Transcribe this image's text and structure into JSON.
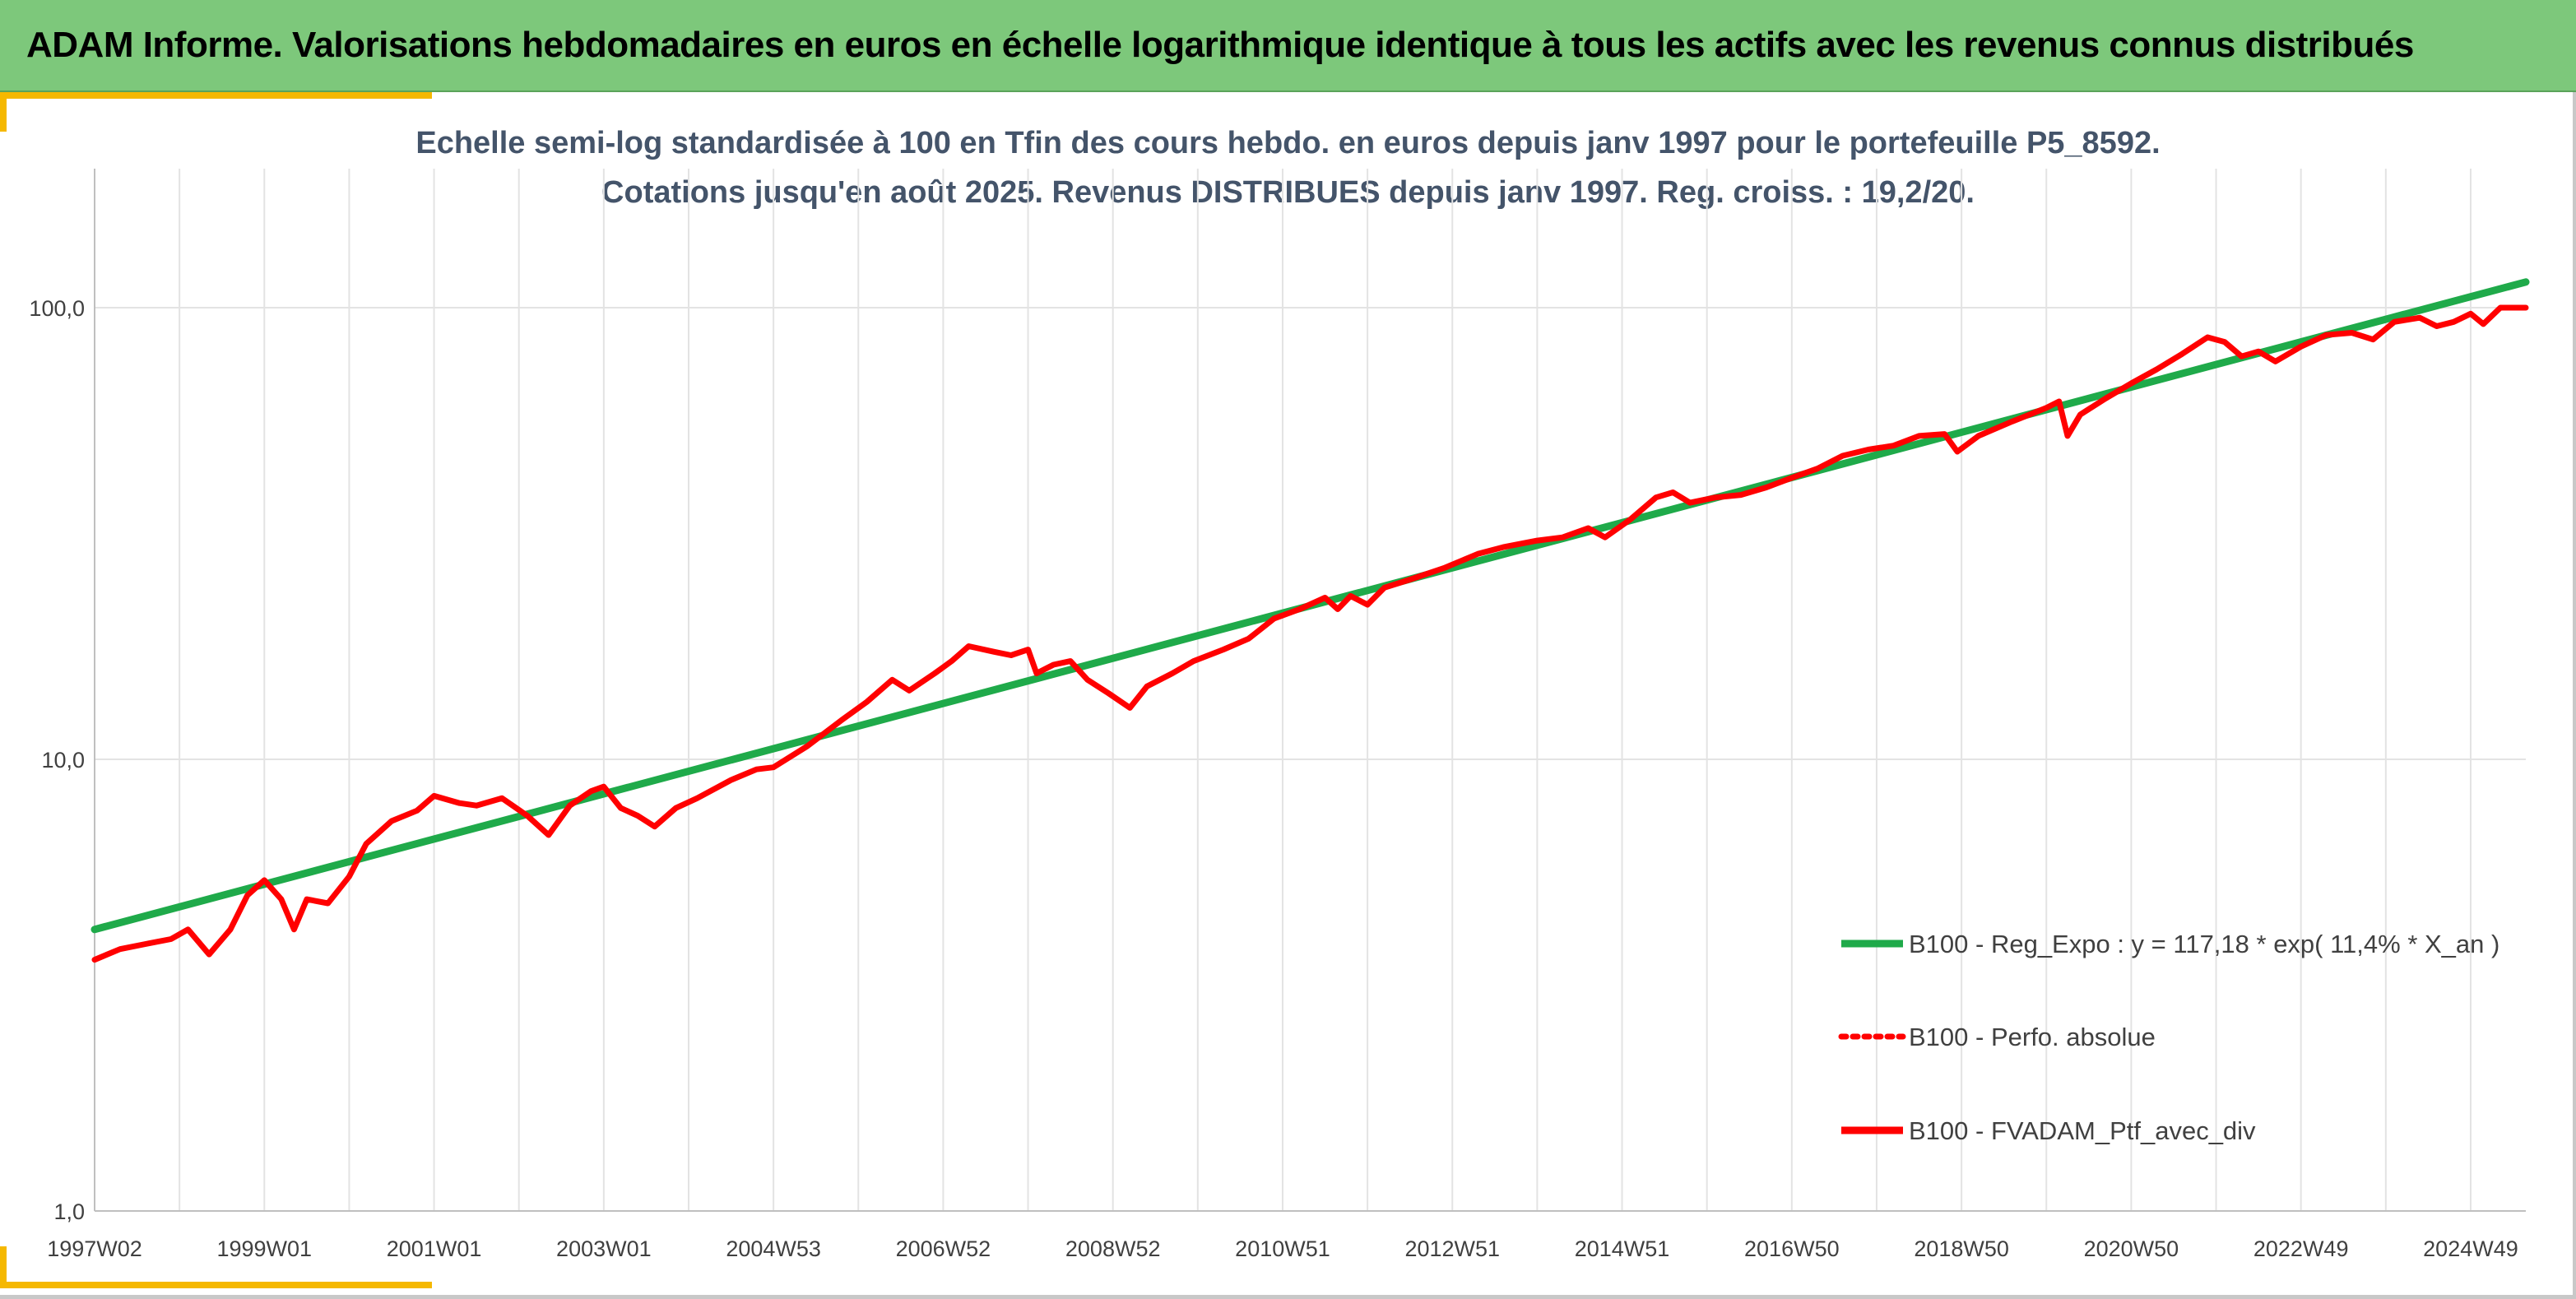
{
  "banner": {
    "title": "ADAM Informe. Valorisations hebdomadaires en euros en échelle logarithmique identique à tous les actifs avec les revenus connus distribués"
  },
  "colors": {
    "banner_bg": "#7dc87b",
    "accent_corner": "#f5b800",
    "regression_line": "#1faa4a",
    "portfolio_line": "#ff0000",
    "subtitle_text": "#44546a"
  },
  "chart_data": {
    "type": "line",
    "title": "Echelle semi-log standardisée à 100 en Tfin des cours hebdo. en euros depuis janv 1997 pour le portefeuille P5_8592.",
    "subtitle": "Cotations jusqu'en août 2025. Revenus DISTRIBUES depuis janv 1997. Reg. croiss. : 19,2/20.",
    "y_scale": "log",
    "ylim": [
      1,
      200
    ],
    "y_ticks": [
      {
        "value": 1,
        "label": "1,0"
      },
      {
        "value": 10,
        "label": "10,0"
      },
      {
        "value": 100,
        "label": "100,0"
      }
    ],
    "x_range": [
      1997.0,
      2025.65
    ],
    "x_ticks": [
      {
        "value": 1997.0,
        "label": "1997W02"
      },
      {
        "value": 1999.0,
        "label": "1999W01"
      },
      {
        "value": 2001.0,
        "label": "2001W01"
      },
      {
        "value": 2003.0,
        "label": "2003W01"
      },
      {
        "value": 2005.0,
        "label": "2004W53"
      },
      {
        "value": 2007.0,
        "label": "2006W52"
      },
      {
        "value": 2009.0,
        "label": "2008W52"
      },
      {
        "value": 2011.0,
        "label": "2010W51"
      },
      {
        "value": 2013.0,
        "label": "2012W51"
      },
      {
        "value": 2015.0,
        "label": "2014W51"
      },
      {
        "value": 2017.0,
        "label": "2016W50"
      },
      {
        "value": 2019.0,
        "label": "2018W50"
      },
      {
        "value": 2021.0,
        "label": "2020W50"
      },
      {
        "value": 2023.0,
        "label": "2022W49"
      },
      {
        "value": 2025.0,
        "label": "2024W49"
      }
    ],
    "grid": {
      "vertical": true,
      "horizontal": true
    },
    "legend_position": "right",
    "series": [
      {
        "name": "B100 - Reg_Expo : y = 117,18 * exp( 11,4% *  X_an )",
        "style": "solid",
        "color": "#1faa4a",
        "points": [
          [
            1997.0,
            4.2
          ],
          [
            2025.65,
            114.0
          ]
        ]
      },
      {
        "name": "B100 - Perfo. absolue",
        "style": "dotted",
        "color": "#ff0000",
        "points": []
      },
      {
        "name": "B100 - FVADAM_Ptf_avec_div",
        "style": "solid",
        "color": "#ff0000",
        "points": [
          [
            1997.0,
            3.6
          ],
          [
            1997.3,
            3.8
          ],
          [
            1997.6,
            3.9
          ],
          [
            1997.9,
            4.0
          ],
          [
            1998.1,
            4.2
          ],
          [
            1998.35,
            3.7
          ],
          [
            1998.6,
            4.2
          ],
          [
            1998.8,
            5.0
          ],
          [
            1999.0,
            5.4
          ],
          [
            1999.2,
            4.9
          ],
          [
            1999.35,
            4.2
          ],
          [
            1999.5,
            4.9
          ],
          [
            1999.75,
            4.8
          ],
          [
            2000.0,
            5.5
          ],
          [
            2000.2,
            6.5
          ],
          [
            2000.5,
            7.3
          ],
          [
            2000.8,
            7.7
          ],
          [
            2001.0,
            8.3
          ],
          [
            2001.3,
            8.0
          ],
          [
            2001.5,
            7.9
          ],
          [
            2001.8,
            8.2
          ],
          [
            2002.1,
            7.5
          ],
          [
            2002.35,
            6.8
          ],
          [
            2002.6,
            7.9
          ],
          [
            2002.85,
            8.5
          ],
          [
            2003.0,
            8.7
          ],
          [
            2003.2,
            7.8
          ],
          [
            2003.4,
            7.5
          ],
          [
            2003.6,
            7.1
          ],
          [
            2003.85,
            7.8
          ],
          [
            2004.1,
            8.2
          ],
          [
            2004.5,
            9.0
          ],
          [
            2004.8,
            9.5
          ],
          [
            2005.0,
            9.6
          ],
          [
            2005.4,
            10.7
          ],
          [
            2005.8,
            12.2
          ],
          [
            2006.1,
            13.4
          ],
          [
            2006.4,
            15.0
          ],
          [
            2006.6,
            14.2
          ],
          [
            2006.9,
            15.5
          ],
          [
            2007.1,
            16.5
          ],
          [
            2007.3,
            17.8
          ],
          [
            2007.6,
            17.3
          ],
          [
            2007.8,
            17.0
          ],
          [
            2008.0,
            17.5
          ],
          [
            2008.1,
            15.5
          ],
          [
            2008.3,
            16.2
          ],
          [
            2008.5,
            16.5
          ],
          [
            2008.7,
            15.0
          ],
          [
            2008.95,
            14.0
          ],
          [
            2009.2,
            13.0
          ],
          [
            2009.4,
            14.5
          ],
          [
            2009.7,
            15.5
          ],
          [
            2009.95,
            16.5
          ],
          [
            2010.3,
            17.5
          ],
          [
            2010.6,
            18.5
          ],
          [
            2010.9,
            20.5
          ],
          [
            2011.2,
            21.5
          ],
          [
            2011.5,
            22.8
          ],
          [
            2011.65,
            21.5
          ],
          [
            2011.8,
            23.0
          ],
          [
            2012.0,
            22.0
          ],
          [
            2012.2,
            24.0
          ],
          [
            2012.5,
            25.0
          ],
          [
            2012.9,
            26.5
          ],
          [
            2013.3,
            28.5
          ],
          [
            2013.6,
            29.5
          ],
          [
            2014.0,
            30.5
          ],
          [
            2014.3,
            31.0
          ],
          [
            2014.6,
            32.5
          ],
          [
            2014.8,
            31.0
          ],
          [
            2015.1,
            34.0
          ],
          [
            2015.4,
            38.0
          ],
          [
            2015.6,
            39.0
          ],
          [
            2015.8,
            37.0
          ],
          [
            2016.1,
            38.0
          ],
          [
            2016.4,
            38.5
          ],
          [
            2016.7,
            40.0
          ],
          [
            2017.0,
            42.0
          ],
          [
            2017.3,
            44.0
          ],
          [
            2017.6,
            47.0
          ],
          [
            2017.9,
            48.5
          ],
          [
            2018.2,
            49.5
          ],
          [
            2018.5,
            52.0
          ],
          [
            2018.8,
            52.5
          ],
          [
            2018.95,
            48.0
          ],
          [
            2019.2,
            52.0
          ],
          [
            2019.6,
            56.0
          ],
          [
            2020.0,
            60.0
          ],
          [
            2020.15,
            62.0
          ],
          [
            2020.25,
            52.0
          ],
          [
            2020.4,
            58.0
          ],
          [
            2020.7,
            63.0
          ],
          [
            2021.0,
            68.0
          ],
          [
            2021.3,
            73.0
          ],
          [
            2021.6,
            79.0
          ],
          [
            2021.9,
            86.0
          ],
          [
            2022.1,
            84.0
          ],
          [
            2022.3,
            78.0
          ],
          [
            2022.5,
            80.0
          ],
          [
            2022.7,
            76.0
          ],
          [
            2023.0,
            82.0
          ],
          [
            2023.3,
            87.0
          ],
          [
            2023.6,
            88.0
          ],
          [
            2023.85,
            85.0
          ],
          [
            2024.1,
            93.0
          ],
          [
            2024.4,
            95.0
          ],
          [
            2024.6,
            91.0
          ],
          [
            2024.8,
            93.0
          ],
          [
            2025.0,
            97.0
          ],
          [
            2025.15,
            92.0
          ],
          [
            2025.35,
            100.0
          ],
          [
            2025.65,
            100.0
          ]
        ]
      }
    ]
  }
}
